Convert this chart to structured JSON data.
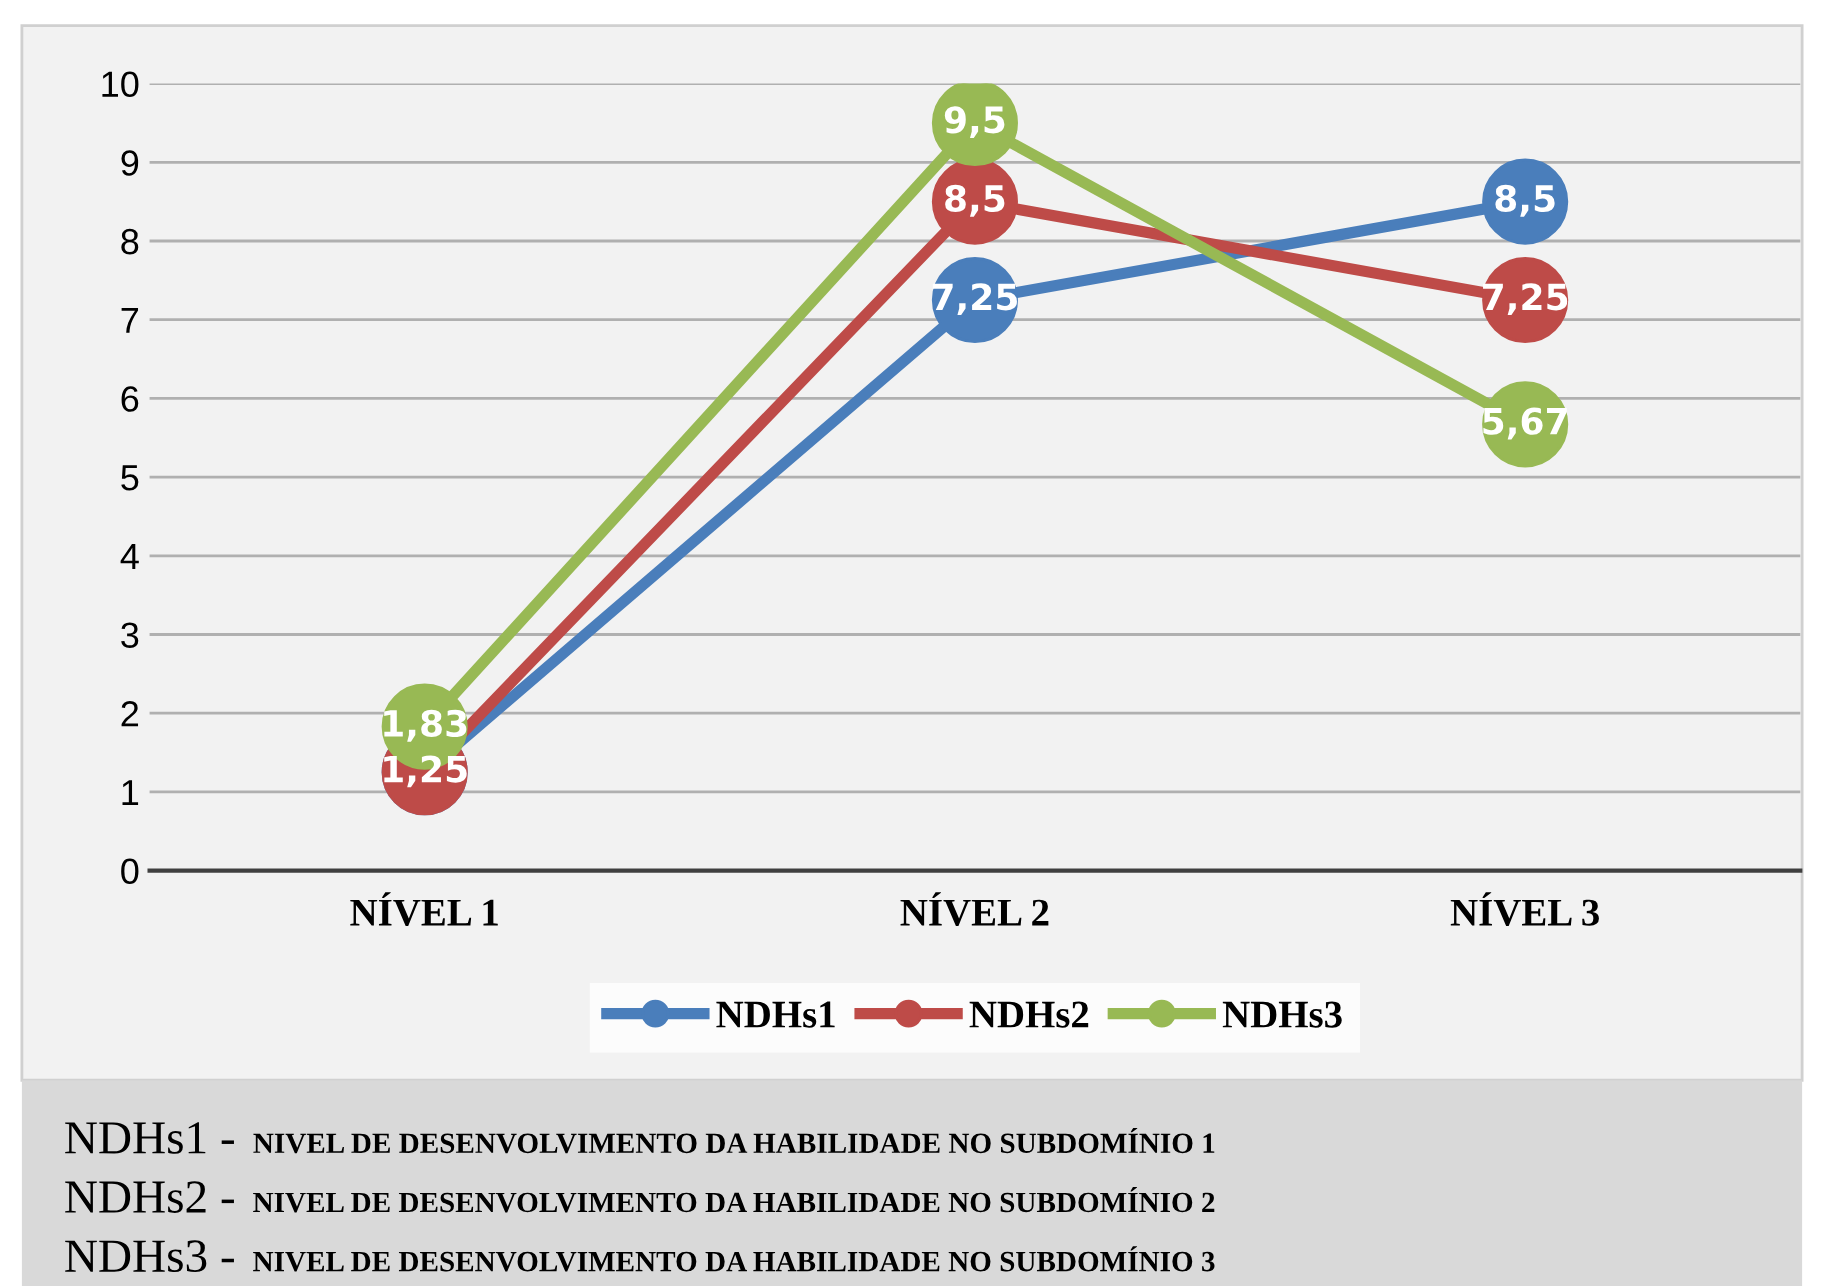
{
  "chart_data": {
    "type": "line",
    "categories": [
      "NÍVEL 1",
      "NÍVEL 2",
      "NÍVEL 3"
    ],
    "series": [
      {
        "name": "NDHs1",
        "color": "#4a7ebb",
        "values": [
          1.25,
          7.25,
          8.5
        ],
        "value_labels": [
          null,
          "7,25",
          "8,5"
        ]
      },
      {
        "name": "NDHs2",
        "color": "#be4b48",
        "values": [
          1.25,
          8.5,
          7.25
        ],
        "value_labels": [
          "1,25",
          "8,5",
          "7,25"
        ]
      },
      {
        "name": "NDHs3",
        "color": "#98b954",
        "values": [
          1.83,
          9.5,
          5.67
        ],
        "value_labels": [
          "1,83",
          "9,5",
          "5,67"
        ]
      }
    ],
    "ylim": [
      0,
      10
    ],
    "yticks": [
      0,
      1,
      2,
      3,
      4,
      5,
      6,
      7,
      8,
      9,
      10
    ],
    "grid": "y",
    "legend": "bottom",
    "marker": "circle",
    "line_style": "solid",
    "annotations": [
      "NDHs1 - NIVEL DE DESENVOLVIMENTO DA HABILIDADE NO SUBDOMÍNIO 1",
      "NDHs2 - NIVEL DE DESENVOLVIMENTO DA HABILIDADE NO SUBDOMÍNIO 2",
      "NDHs3 - NIVEL DE DESENVOLVIMENTO DA HABILIDADE NO SUBDOMÍNIO 3"
    ]
  }
}
